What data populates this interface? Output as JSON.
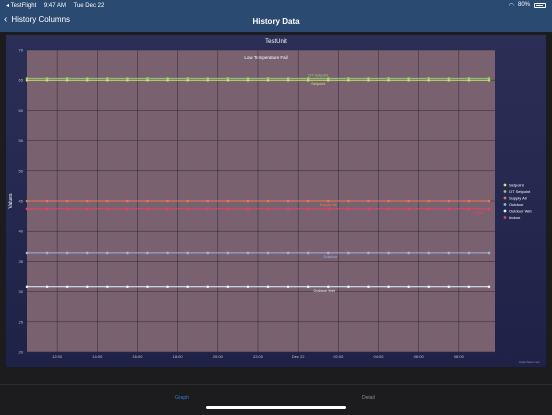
{
  "status": {
    "carrier": "◂ TestFlight",
    "time": "9:47 AM",
    "date": "Tue Dec 22",
    "battery": "80%"
  },
  "nav": {
    "back_label": "History Columns",
    "title": "History Data"
  },
  "chart_data": {
    "type": "line",
    "title": "TestUnit",
    "subtitle": "Low Temperature Fail",
    "ylabel": "Values",
    "ylim": [
      20,
      70
    ],
    "y_ticks": [
      "20",
      "25",
      "30",
      "35",
      "40",
      "45",
      "50",
      "55",
      "60",
      "65",
      "70"
    ],
    "x_ticks": [
      "12:00",
      "14:00",
      "16:00",
      "18:00",
      "20:00",
      "22:00",
      "Dec 22",
      "02:00",
      "04:00",
      "06:00",
      "08:00"
    ],
    "x_tick_hours": [
      12,
      14,
      16,
      18,
      20,
      22,
      24,
      26,
      28,
      30,
      32
    ],
    "xlim": [
      10.5,
      33.8
    ],
    "point_hours": [
      10.5,
      11.5,
      12.5,
      13.5,
      14.5,
      15.5,
      16.5,
      17.5,
      18.5,
      19.5,
      20.5,
      21.5,
      22.5,
      23.5,
      24.5,
      25.5,
      26.5,
      27.5,
      28.5,
      29.5,
      30.5,
      31.5,
      32.5,
      33.5
    ],
    "series": [
      {
        "name": "Setpoint",
        "color": "#c8e86a",
        "value": 65,
        "label": "Setpoint",
        "label_hour": 25.0
      },
      {
        "name": "OT Setpoint",
        "color": "#8fd16a",
        "value": 65.3,
        "label": "OT Setpoint",
        "label_hour": 25.0
      },
      {
        "name": "Supply Air",
        "color": "#e8785a",
        "value": 45,
        "label": "Supply Air",
        "label_hour": 25.5
      },
      {
        "name": "Outdoor",
        "color": "#9fb3e0",
        "value": 36.4,
        "label": "Outdoor",
        "label_hour": 25.6
      },
      {
        "name": "Outdoor Wet",
        "color": "#e6f2ff",
        "value": 30.8,
        "label": "Outdoor Wet",
        "label_hour": 25.3
      },
      {
        "name": "Indoor",
        "color": "#e2456a",
        "value": 43.7,
        "label": "Indoor",
        "label_hour": 33.0
      }
    ],
    "legend_position": "right",
    "grid": true,
    "credit": "Highcharts.com"
  },
  "tabs": {
    "graph": "Graph",
    "detail": "Detail"
  }
}
